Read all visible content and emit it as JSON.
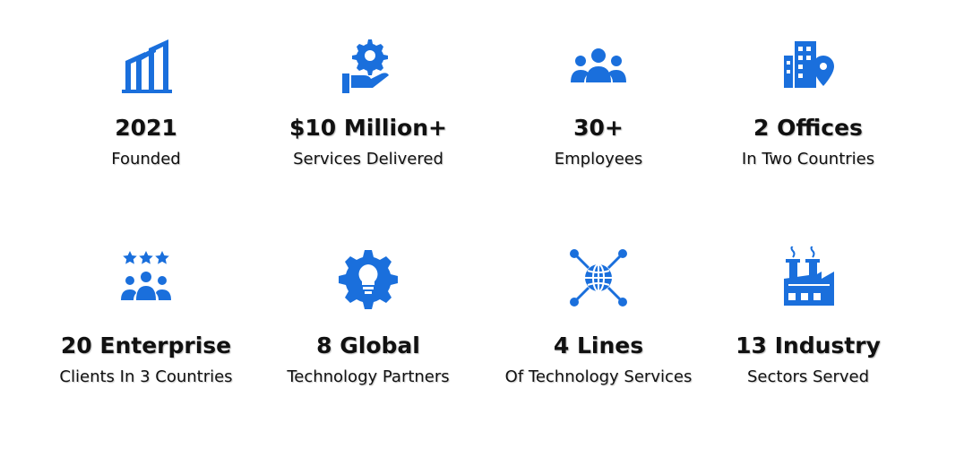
{
  "accent_color": "#1a6fdc",
  "stats": [
    {
      "icon": "building-growth-icon",
      "value": "2021",
      "label": "Founded"
    },
    {
      "icon": "hand-gear-icon",
      "value": "$10 Million+",
      "label": "Services Delivered"
    },
    {
      "icon": "people-group-icon",
      "value": "30+",
      "label": "Employees"
    },
    {
      "icon": "office-location-icon",
      "value": "2 Offices",
      "label": "In Two Countries"
    },
    {
      "icon": "rated-clients-icon",
      "value": "20 Enterprise",
      "label": "Clients In 3 Countries"
    },
    {
      "icon": "gear-lightbulb-icon",
      "value": "8 Global",
      "label": "Technology Partners"
    },
    {
      "icon": "network-globe-icon",
      "value": "4 Lines",
      "label": "Of Technology Services"
    },
    {
      "icon": "factory-icon",
      "value": "13 Industry",
      "label": "Sectors Served"
    }
  ]
}
